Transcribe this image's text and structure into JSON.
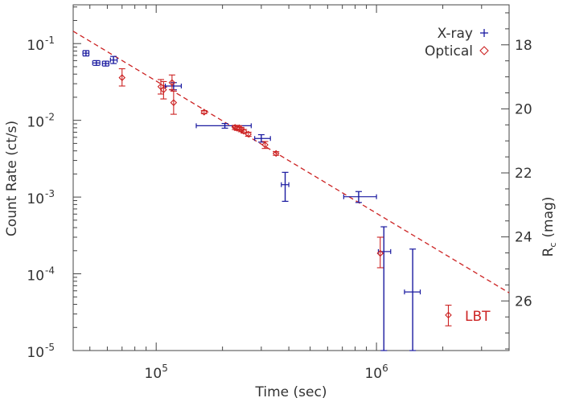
{
  "chart_data": {
    "type": "scatter",
    "title": "",
    "xlabel": "Time (sec)",
    "ylabel": "Count Rate (ct/s)",
    "y2label_main": "R",
    "y2label_sub": "c",
    "y2label_unit": "(mag)",
    "xscale": "log",
    "yscale": "log",
    "xlim": [
      42000,
      4000000
    ],
    "ylim": [
      1e-05,
      0.32
    ],
    "y2lim": [
      16.75,
      27.55
    ],
    "x_ticks": [
      {
        "value": 100000,
        "base": "10",
        "exp": "5"
      },
      {
        "value": 1000000,
        "base": "10",
        "exp": "6"
      }
    ],
    "y_ticks": [
      {
        "value": 1e-05,
        "base": "10",
        "exp": "-5"
      },
      {
        "value": 0.0001,
        "base": "10",
        "exp": "-4"
      },
      {
        "value": 0.001,
        "base": "10",
        "exp": "-3"
      },
      {
        "value": 0.01,
        "base": "10",
        "exp": "-2"
      },
      {
        "value": 0.1,
        "base": "10",
        "exp": "-1"
      }
    ],
    "y2_ticks": [
      "18",
      "20",
      "22",
      "24",
      "26"
    ],
    "colors": {
      "xray": "#1a1aa0",
      "optical": "#cc2222",
      "axis": "#444444",
      "fit": "#cc2222"
    },
    "fit_line": {
      "style": "dashed",
      "x": [
        42000,
        4000000
      ],
      "y": [
        0.145,
        5.65e-05
      ]
    },
    "series": [
      {
        "name": "X-ray",
        "marker": "plus",
        "points": [
          {
            "x": 48000,
            "y": 0.075,
            "xlo": 46500,
            "xhi": 49500,
            "ylo": 0.069,
            "yhi": 0.081
          },
          {
            "x": 53500,
            "y": 0.056,
            "xlo": 51500,
            "xhi": 55500,
            "ylo": 0.052,
            "yhi": 0.06
          },
          {
            "x": 59000,
            "y": 0.055,
            "xlo": 57000,
            "xhi": 61000,
            "ylo": 0.051,
            "yhi": 0.059
          },
          {
            "x": 64000,
            "y": 0.061,
            "xlo": 62000,
            "xhi": 66500,
            "ylo": 0.055,
            "yhi": 0.068
          },
          {
            "x": 120000,
            "y": 0.028,
            "xlo": 110000,
            "xhi": 130000,
            "ylo": 0.025,
            "yhi": 0.031
          },
          {
            "x": 205000,
            "y": 0.0085,
            "xlo": 152000,
            "xhi": 270000,
            "ylo": 0.0079,
            "yhi": 0.0091
          },
          {
            "x": 300000,
            "y": 0.0058,
            "xlo": 280000,
            "xhi": 330000,
            "ylo": 0.0052,
            "yhi": 0.0065
          },
          {
            "x": 385000,
            "y": 0.00145,
            "xlo": 370000,
            "xhi": 400000,
            "ylo": 0.00088,
            "yhi": 0.0021
          },
          {
            "x": 830000,
            "y": 0.00101,
            "xlo": 710000,
            "xhi": 1000000,
            "ylo": 0.00085,
            "yhi": 0.00118
          },
          {
            "x": 1080000,
            "y": 0.000195,
            "xlo": 1020000,
            "xhi": 1160000,
            "ylo": 1e-05,
            "yhi": 0.00041
          },
          {
            "x": 1460000,
            "y": 5.8e-05,
            "xlo": 1340000,
            "xhi": 1580000,
            "ylo": 1e-05,
            "yhi": 0.00021
          }
        ]
      },
      {
        "name": "Optical",
        "marker": "diamond",
        "points": [
          {
            "x": 70000,
            "y": 0.036,
            "ylo": 0.028,
            "yhi": 0.047
          },
          {
            "x": 105000,
            "y": 0.0275,
            "ylo": 0.022,
            "yhi": 0.034
          },
          {
            "x": 108000,
            "y": 0.025,
            "ylo": 0.019,
            "yhi": 0.032
          },
          {
            "x": 118000,
            "y": 0.031,
            "ylo": 0.025,
            "yhi": 0.039
          },
          {
            "x": 120000,
            "y": 0.017,
            "ylo": 0.012,
            "yhi": 0.024
          },
          {
            "x": 165000,
            "y": 0.0128,
            "ylo": 0.0122,
            "yhi": 0.0134
          },
          {
            "x": 228000,
            "y": 0.0081,
            "ylo": 0.0076,
            "yhi": 0.0086
          },
          {
            "x": 233000,
            "y": 0.0079,
            "ylo": 0.0074,
            "yhi": 0.0084
          },
          {
            "x": 238000,
            "y": 0.008,
            "ylo": 0.0075,
            "yhi": 0.0085
          },
          {
            "x": 243000,
            "y": 0.0076,
            "ylo": 0.0071,
            "yhi": 0.0081
          },
          {
            "x": 250000,
            "y": 0.0072,
            "ylo": 0.0068,
            "yhi": 0.0076
          },
          {
            "x": 262000,
            "y": 0.0066,
            "ylo": 0.0062,
            "yhi": 0.007
          },
          {
            "x": 312000,
            "y": 0.0048,
            "ylo": 0.0043,
            "yhi": 0.0053
          },
          {
            "x": 350000,
            "y": 0.0037,
            "ylo": 0.0035,
            "yhi": 0.0039
          },
          {
            "x": 1040000,
            "y": 0.000185,
            "ylo": 0.00012,
            "yhi": 0.0003
          },
          {
            "x": 2120000,
            "y": 2.9e-05,
            "ylo": 2.1e-05,
            "yhi": 3.9e-05
          }
        ]
      }
    ],
    "legend": {
      "placement": "top-right",
      "entries": [
        {
          "label": "X-ray",
          "marker": "plus"
        },
        {
          "label": "Optical",
          "marker": "diamond"
        }
      ]
    },
    "annotations": [
      {
        "text": "LBT",
        "x": 2120000,
        "y": 2.9e-05,
        "marker": "diamond"
      }
    ]
  }
}
